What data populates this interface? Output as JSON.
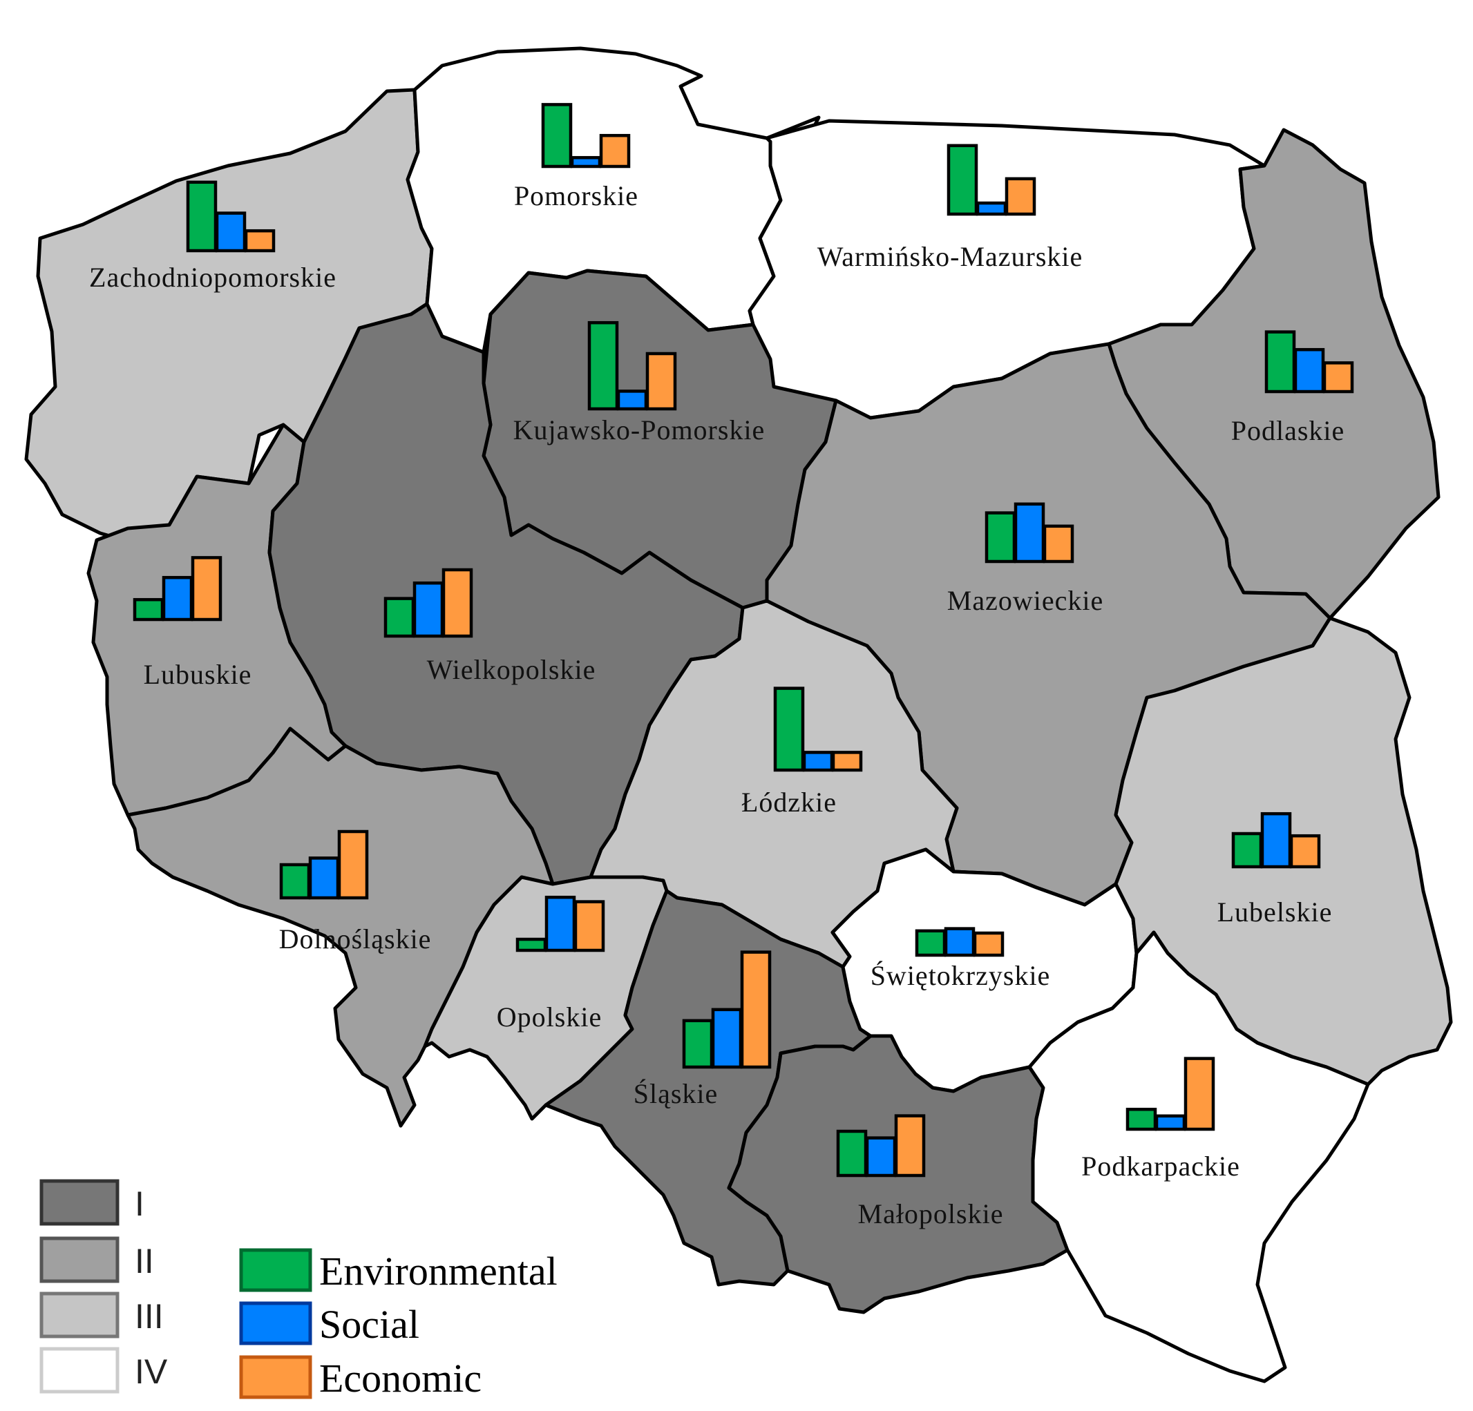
{
  "colors": {
    "class_I": "#777777",
    "class_II": "#a0a0a0",
    "class_III": "#c5c5c5",
    "class_IV": "#ffffff",
    "environmental": "#00b050",
    "social": "#0080ff",
    "economic": "#ff9a40"
  },
  "legend": {
    "classes": [
      {
        "label": "I",
        "class": "I"
      },
      {
        "label": "II",
        "class": "II"
      },
      {
        "label": "III",
        "class": "III"
      },
      {
        "label": "IV",
        "class": "IV"
      }
    ],
    "series": [
      {
        "label": "Environmental",
        "key": "environmental"
      },
      {
        "label": "Social",
        "key": "social"
      },
      {
        "label": "Economic",
        "key": "economic"
      }
    ]
  },
  "chart_data": {
    "type": "bar",
    "series_order": [
      "Environmental",
      "Social",
      "Economic"
    ],
    "regions": [
      {
        "name": "Zachodniopomorskie",
        "class": "III",
        "values": [
          3.1,
          1.7,
          0.9
        ]
      },
      {
        "name": "Pomorskie",
        "class": "IV",
        "values": [
          2.8,
          0.4,
          1.4
        ]
      },
      {
        "name": "Warmińsko-Mazurskie",
        "class": "IV",
        "values": [
          3.1,
          0.5,
          1.6
        ]
      },
      {
        "name": "Kujawsko-Pomorskie",
        "class": "I",
        "values": [
          3.9,
          0.8,
          2.5
        ]
      },
      {
        "name": "Podlaskie",
        "class": "II",
        "values": [
          2.7,
          1.9,
          1.3
        ]
      },
      {
        "name": "Lubuskie",
        "class": "II",
        "values": [
          0.9,
          1.9,
          2.8
        ]
      },
      {
        "name": "Wielkopolskie",
        "class": "I",
        "values": [
          1.7,
          2.4,
          3.0
        ]
      },
      {
        "name": "Mazowieckie",
        "class": "II",
        "values": [
          2.2,
          2.6,
          1.6
        ]
      },
      {
        "name": "Łódzkie",
        "class": "III",
        "values": [
          3.7,
          0.8,
          0.8
        ]
      },
      {
        "name": "Dolnośląskie",
        "class": "II",
        "values": [
          1.5,
          1.8,
          3.0
        ]
      },
      {
        "name": "Opolskie",
        "class": "III",
        "values": [
          0.5,
          2.4,
          2.2
        ]
      },
      {
        "name": "Śląskie",
        "class": "I",
        "values": [
          2.1,
          2.6,
          5.2
        ]
      },
      {
        "name": "Świętokrzyskie",
        "class": "IV",
        "values": [
          1.1,
          1.2,
          1.0
        ]
      },
      {
        "name": "Lubelskie",
        "class": "III",
        "values": [
          1.5,
          2.4,
          1.4
        ]
      },
      {
        "name": "Małopolskie",
        "class": "I",
        "values": [
          2.0,
          1.7,
          2.7
        ]
      },
      {
        "name": "Podkarpackie",
        "class": "IV",
        "values": [
          0.9,
          0.6,
          3.2
        ]
      }
    ]
  }
}
